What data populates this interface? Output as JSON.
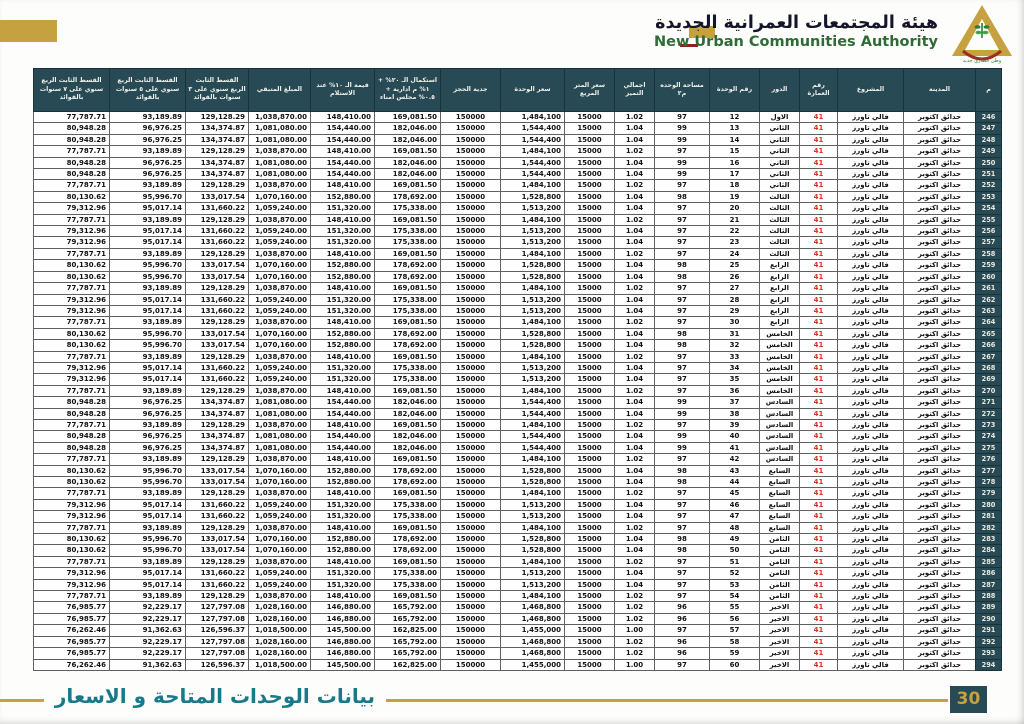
{
  "header": {
    "org_ar": "هيئة المجتمعات العمرانية الجديدة",
    "org_en": "New Urban Communities Authority",
    "logo_tagline": "وطن حضاري جديد"
  },
  "footer": {
    "title": "بيانات الوحدات المتاحة و الاسعار",
    "page_number": "30"
  },
  "colors": {
    "accent_gold": "#C5A13F",
    "table_header_bg": "#274A54",
    "building_number_red": "#D93025",
    "footer_teal": "#17798A",
    "org_en_green": "#2E6B35",
    "org_ar_navy": "#14142B"
  },
  "table": {
    "columns": [
      "م",
      "المدينة",
      "المشروع",
      "رقم العمارة",
      "الدور",
      "رقم الوحدة",
      "مساحة الوحده م٢",
      "اجمالي التميز",
      "سعر المتر المربع",
      "سعر الوحدة",
      "جدية الحجز",
      "استكمال الـ ٢٠% + ١% م ادارية + ٠.٥% مجلس امناء",
      "قيمة الـ ١٠% عند الاستلام",
      "المبلغ المتبقي",
      "القسط الثابت الربع سنوي على ٣ سنوات بالقوائد",
      "القسط الثابت الربع سنوي على ٥ سنوات بالقوائد",
      "القسط الثابت الربع سنوي على ٧ سنوات بالقوائد"
    ],
    "rows": [
      [
        "246",
        "حدائق اكتوبر",
        "فالي تاورز",
        "41",
        "الاول",
        "12",
        "97",
        "1.02",
        "15000",
        "1,484,100",
        "150000",
        "169,081.50",
        "148,410.00",
        "1,038,870.00",
        "129,128.29",
        "93,189.89",
        "77,787.71"
      ],
      [
        "247",
        "حدائق اكتوبر",
        "فالي تاورز",
        "41",
        "الثاني",
        "13",
        "99",
        "1.04",
        "15000",
        "1,544,400",
        "150000",
        "182,046.00",
        "154,440.00",
        "1,081,080.00",
        "134,374.87",
        "96,976.25",
        "80,948.28"
      ],
      [
        "248",
        "حدائق اكتوبر",
        "فالي تاورز",
        "41",
        "الثاني",
        "14",
        "99",
        "1.04",
        "15000",
        "1,544,400",
        "150000",
        "182,046.00",
        "154,440.00",
        "1,081,080.00",
        "134,374.87",
        "96,976.25",
        "80,948.28"
      ],
      [
        "249",
        "حدائق اكتوبر",
        "فالي تاورز",
        "41",
        "الثاني",
        "15",
        "97",
        "1.02",
        "15000",
        "1,484,100",
        "150000",
        "169,081.50",
        "148,410.00",
        "1,038,870.00",
        "129,128.29",
        "93,189.89",
        "77,787.71"
      ],
      [
        "250",
        "حدائق اكتوبر",
        "فالي تاورز",
        "41",
        "الثاني",
        "16",
        "99",
        "1.04",
        "15000",
        "1,544,400",
        "150000",
        "182,046.00",
        "154,440.00",
        "1,081,080.00",
        "134,374.87",
        "96,976.25",
        "80,948.28"
      ],
      [
        "251",
        "حدائق اكتوبر",
        "فالي تاورز",
        "41",
        "الثاني",
        "17",
        "99",
        "1.04",
        "15000",
        "1,544,400",
        "150000",
        "182,046.00",
        "154,440.00",
        "1,081,080.00",
        "134,374.87",
        "96,976.25",
        "80,948.28"
      ],
      [
        "252",
        "حدائق اكتوبر",
        "فالي تاورز",
        "41",
        "الثاني",
        "18",
        "97",
        "1.02",
        "15000",
        "1,484,100",
        "150000",
        "169,081.50",
        "148,410.00",
        "1,038,870.00",
        "129,128.29",
        "93,189.89",
        "77,787.71"
      ],
      [
        "253",
        "حدائق اكتوبر",
        "فالي تاورز",
        "41",
        "الثالث",
        "19",
        "98",
        "1.04",
        "15000",
        "1,528,800",
        "150000",
        "178,692.00",
        "152,880.00",
        "1,070,160.00",
        "133,017.54",
        "95,996.70",
        "80,130.62"
      ],
      [
        "254",
        "حدائق اكتوبر",
        "فالي تاورز",
        "41",
        "الثالث",
        "20",
        "97",
        "1.04",
        "15000",
        "1,513,200",
        "150000",
        "175,338.00",
        "151,320.00",
        "1,059,240.00",
        "131,660.22",
        "95,017.14",
        "79,312.96"
      ],
      [
        "255",
        "حدائق اكتوبر",
        "فالي تاورز",
        "41",
        "الثالث",
        "21",
        "97",
        "1.02",
        "15000",
        "1,484,100",
        "150000",
        "169,081.50",
        "148,410.00",
        "1,038,870.00",
        "129,128.29",
        "93,189.89",
        "77,787.71"
      ],
      [
        "256",
        "حدائق اكتوبر",
        "فالي تاورز",
        "41",
        "الثالث",
        "22",
        "97",
        "1.04",
        "15000",
        "1,513,200",
        "150000",
        "175,338.00",
        "151,320.00",
        "1,059,240.00",
        "131,660.22",
        "95,017.14",
        "79,312.96"
      ],
      [
        "257",
        "حدائق اكتوبر",
        "فالي تاورز",
        "41",
        "الثالث",
        "23",
        "97",
        "1.04",
        "15000",
        "1,513,200",
        "150000",
        "175,338.00",
        "151,320.00",
        "1,059,240.00",
        "131,660.22",
        "95,017.14",
        "79,312.96"
      ],
      [
        "258",
        "حدائق اكتوبر",
        "فالي تاورز",
        "41",
        "الثالث",
        "24",
        "97",
        "1.02",
        "15000",
        "1,484,100",
        "150000",
        "169,081.50",
        "148,410.00",
        "1,038,870.00",
        "129,128.29",
        "93,189.89",
        "77,787.71"
      ],
      [
        "259",
        "حدائق اكتوبر",
        "فالي تاورز",
        "41",
        "الرابع",
        "25",
        "98",
        "1.04",
        "15000",
        "1,528,800",
        "150000",
        "178,692.00",
        "152,880.00",
        "1,070,160.00",
        "133,017.54",
        "95,996.70",
        "80,130.62"
      ],
      [
        "260",
        "حدائق اكتوبر",
        "فالي تاورز",
        "41",
        "الرابع",
        "26",
        "98",
        "1.04",
        "15000",
        "1,528,800",
        "150000",
        "178,692.00",
        "152,880.00",
        "1,070,160.00",
        "133,017.54",
        "95,996.70",
        "80,130.62"
      ],
      [
        "261",
        "حدائق اكتوبر",
        "فالي تاورز",
        "41",
        "الرابع",
        "27",
        "97",
        "1.02",
        "15000",
        "1,484,100",
        "150000",
        "169,081.50",
        "148,410.00",
        "1,038,870.00",
        "129,128.29",
        "93,189.89",
        "77,787.71"
      ],
      [
        "262",
        "حدائق اكتوبر",
        "فالي تاورز",
        "41",
        "الرابع",
        "28",
        "97",
        "1.04",
        "15000",
        "1,513,200",
        "150000",
        "175,338.00",
        "151,320.00",
        "1,059,240.00",
        "131,660.22",
        "95,017.14",
        "79,312.96"
      ],
      [
        "263",
        "حدائق اكتوبر",
        "فالي تاورز",
        "41",
        "الرابع",
        "29",
        "97",
        "1.04",
        "15000",
        "1,513,200",
        "150000",
        "175,338.00",
        "151,320.00",
        "1,059,240.00",
        "131,660.22",
        "95,017.14",
        "79,312.96"
      ],
      [
        "264",
        "حدائق اكتوبر",
        "فالي تاورز",
        "41",
        "الرابع",
        "30",
        "97",
        "1.02",
        "15000",
        "1,484,100",
        "150000",
        "169,081.50",
        "148,410.00",
        "1,038,870.00",
        "129,128.29",
        "93,189.89",
        "77,787.71"
      ],
      [
        "265",
        "حدائق اكتوبر",
        "فالي تاورز",
        "41",
        "الخامس",
        "31",
        "98",
        "1.04",
        "15000",
        "1,528,800",
        "150000",
        "178,692.00",
        "152,880.00",
        "1,070,160.00",
        "133,017.54",
        "95,996.70",
        "80,130.62"
      ],
      [
        "266",
        "حدائق اكتوبر",
        "فالي تاورز",
        "41",
        "الخامس",
        "32",
        "98",
        "1.04",
        "15000",
        "1,528,800",
        "150000",
        "178,692.00",
        "152,880.00",
        "1,070,160.00",
        "133,017.54",
        "95,996.70",
        "80,130.62"
      ],
      [
        "267",
        "حدائق اكتوبر",
        "فالي تاورز",
        "41",
        "الخامس",
        "33",
        "97",
        "1.02",
        "15000",
        "1,484,100",
        "150000",
        "169,081.50",
        "148,410.00",
        "1,038,870.00",
        "129,128.29",
        "93,189.89",
        "77,787.71"
      ],
      [
        "268",
        "حدائق اكتوبر",
        "فالي تاورز",
        "41",
        "الخامس",
        "34",
        "97",
        "1.04",
        "15000",
        "1,513,200",
        "150000",
        "175,338.00",
        "151,320.00",
        "1,059,240.00",
        "131,660.22",
        "95,017.14",
        "79,312.96"
      ],
      [
        "269",
        "حدائق اكتوبر",
        "فالي تاورز",
        "41",
        "الخامس",
        "35",
        "97",
        "1.04",
        "15000",
        "1,513,200",
        "150000",
        "175,338.00",
        "151,320.00",
        "1,059,240.00",
        "131,660.22",
        "95,017.14",
        "79,312.96"
      ],
      [
        "270",
        "حدائق اكتوبر",
        "فالي تاورز",
        "41",
        "الخامس",
        "36",
        "97",
        "1.02",
        "15000",
        "1,484,100",
        "150000",
        "169,081.50",
        "148,410.00",
        "1,038,870.00",
        "129,128.29",
        "93,189.89",
        "77,787.71"
      ],
      [
        "271",
        "حدائق اكتوبر",
        "فالي تاورز",
        "41",
        "السادس",
        "37",
        "99",
        "1.04",
        "15000",
        "1,544,400",
        "150000",
        "182,046.00",
        "154,440.00",
        "1,081,080.00",
        "134,374.87",
        "96,976.25",
        "80,948.28"
      ],
      [
        "272",
        "حدائق اكتوبر",
        "فالي تاورز",
        "41",
        "السادس",
        "38",
        "99",
        "1.04",
        "15000",
        "1,544,400",
        "150000",
        "182,046.00",
        "154,440.00",
        "1,081,080.00",
        "134,374.87",
        "96,976.25",
        "80,948.28"
      ],
      [
        "273",
        "حدائق اكتوبر",
        "فالي تاورز",
        "41",
        "السادس",
        "39",
        "97",
        "1.02",
        "15000",
        "1,484,100",
        "150000",
        "169,081.50",
        "148,410.00",
        "1,038,870.00",
        "129,128.29",
        "93,189.89",
        "77,787.71"
      ],
      [
        "274",
        "حدائق اكتوبر",
        "فالي تاورز",
        "41",
        "السادس",
        "40",
        "99",
        "1.04",
        "15000",
        "1,544,400",
        "150000",
        "182,046.00",
        "154,440.00",
        "1,081,080.00",
        "134,374.87",
        "96,976.25",
        "80,948.28"
      ],
      [
        "275",
        "حدائق اكتوبر",
        "فالي تاورز",
        "41",
        "السادس",
        "41",
        "99",
        "1.04",
        "15000",
        "1,544,400",
        "150000",
        "182,046.00",
        "154,440.00",
        "1,081,080.00",
        "134,374.87",
        "96,976.25",
        "80,948.28"
      ],
      [
        "276",
        "حدائق اكتوبر",
        "فالي تاورز",
        "41",
        "السادس",
        "42",
        "97",
        "1.02",
        "15000",
        "1,484,100",
        "150000",
        "169,081.50",
        "148,410.00",
        "1,038,870.00",
        "129,128.29",
        "93,189.89",
        "77,787.71"
      ],
      [
        "277",
        "حدائق اكتوبر",
        "فالي تاورز",
        "41",
        "السابع",
        "43",
        "98",
        "1.04",
        "15000",
        "1,528,800",
        "150000",
        "178,692.00",
        "152,880.00",
        "1,070,160.00",
        "133,017.54",
        "95,996.70",
        "80,130.62"
      ],
      [
        "278",
        "حدائق اكتوبر",
        "فالي تاورز",
        "41",
        "السابع",
        "44",
        "98",
        "1.04",
        "15000",
        "1,528,800",
        "150000",
        "178,692.00",
        "152,880.00",
        "1,070,160.00",
        "133,017.54",
        "95,996.70",
        "80,130.62"
      ],
      [
        "279",
        "حدائق اكتوبر",
        "فالي تاورز",
        "41",
        "السابع",
        "45",
        "97",
        "1.02",
        "15000",
        "1,484,100",
        "150000",
        "169,081.50",
        "148,410.00",
        "1,038,870.00",
        "129,128.29",
        "93,189.89",
        "77,787.71"
      ],
      [
        "280",
        "حدائق اكتوبر",
        "فالي تاورز",
        "41",
        "السابع",
        "46",
        "97",
        "1.04",
        "15000",
        "1,513,200",
        "150000",
        "175,338.00",
        "151,320.00",
        "1,059,240.00",
        "131,660.22",
        "95,017.14",
        "79,312.96"
      ],
      [
        "281",
        "حدائق اكتوبر",
        "فالي تاورز",
        "41",
        "السابع",
        "47",
        "97",
        "1.04",
        "15000",
        "1,513,200",
        "150000",
        "175,338.00",
        "151,320.00",
        "1,059,240.00",
        "131,660.22",
        "95,017.14",
        "79,312.96"
      ],
      [
        "282",
        "حدائق اكتوبر",
        "فالي تاورز",
        "41",
        "السابع",
        "48",
        "97",
        "1.02",
        "15000",
        "1,484,100",
        "150000",
        "169,081.50",
        "148,410.00",
        "1,038,870.00",
        "129,128.29",
        "93,189.89",
        "77,787.71"
      ],
      [
        "283",
        "حدائق اكتوبر",
        "فالي تاورز",
        "41",
        "الثامن",
        "49",
        "98",
        "1.04",
        "15000",
        "1,528,800",
        "150000",
        "178,692.00",
        "152,880.00",
        "1,070,160.00",
        "133,017.54",
        "95,996.70",
        "80,130.62"
      ],
      [
        "284",
        "حدائق اكتوبر",
        "فالي تاورز",
        "41",
        "الثامن",
        "50",
        "98",
        "1.04",
        "15000",
        "1,528,800",
        "150000",
        "178,692.00",
        "152,880.00",
        "1,070,160.00",
        "133,017.54",
        "95,996.70",
        "80,130.62"
      ],
      [
        "285",
        "حدائق اكتوبر",
        "فالي تاورز",
        "41",
        "الثامن",
        "51",
        "97",
        "1.02",
        "15000",
        "1,484,100",
        "150000",
        "169,081.50",
        "148,410.00",
        "1,038,870.00",
        "129,128.29",
        "93,189.89",
        "77,787.71"
      ],
      [
        "286",
        "حدائق اكتوبر",
        "فالي تاورز",
        "41",
        "الثامن",
        "52",
        "97",
        "1.04",
        "15000",
        "1,513,200",
        "150000",
        "175,338.00",
        "151,320.00",
        "1,059,240.00",
        "131,660.22",
        "95,017.14",
        "79,312.96"
      ],
      [
        "287",
        "حدائق اكتوبر",
        "فالي تاورز",
        "41",
        "الثامن",
        "53",
        "97",
        "1.04",
        "15000",
        "1,513,200",
        "150000",
        "175,338.00",
        "151,320.00",
        "1,059,240.00",
        "131,660.22",
        "95,017.14",
        "79,312.96"
      ],
      [
        "288",
        "حدائق اكتوبر",
        "فالي تاورز",
        "41",
        "الثامن",
        "54",
        "97",
        "1.02",
        "15000",
        "1,484,100",
        "150000",
        "169,081.50",
        "148,410.00",
        "1,038,870.00",
        "129,128.29",
        "93,189.89",
        "77,787.71"
      ],
      [
        "289",
        "حدائق اكتوبر",
        "فالي تاورز",
        "41",
        "الاخير",
        "55",
        "96",
        "1.02",
        "15000",
        "1,468,800",
        "150000",
        "165,792.00",
        "146,880.00",
        "1,028,160.00",
        "127,797.08",
        "92,229.17",
        "76,985.77"
      ],
      [
        "290",
        "حدائق اكتوبر",
        "فالي تاورز",
        "41",
        "الاخير",
        "56",
        "96",
        "1.02",
        "15000",
        "1,468,800",
        "150000",
        "165,792.00",
        "146,880.00",
        "1,028,160.00",
        "127,797.08",
        "92,229.17",
        "76,985.77"
      ],
      [
        "291",
        "حدائق اكتوبر",
        "فالي تاورز",
        "41",
        "الاخير",
        "57",
        "97",
        "1.00",
        "15000",
        "1,455,000",
        "150000",
        "162,825.00",
        "145,500.00",
        "1,018,500.00",
        "126,596.37",
        "91,362.63",
        "76,262.46"
      ],
      [
        "292",
        "حدائق اكتوبر",
        "فالي تاورز",
        "41",
        "الاخير",
        "58",
        "96",
        "1.02",
        "15000",
        "1,468,800",
        "150000",
        "165,792.00",
        "146,880.00",
        "1,028,160.00",
        "127,797.08",
        "92,229.17",
        "76,985.77"
      ],
      [
        "293",
        "حدائق اكتوبر",
        "فالي تاورز",
        "41",
        "الاخير",
        "59",
        "96",
        "1.02",
        "15000",
        "1,468,800",
        "150000",
        "165,792.00",
        "146,880.00",
        "1,028,160.00",
        "127,797.08",
        "92,229.17",
        "76,985.77"
      ],
      [
        "294",
        "حدائق اكتوبر",
        "فالي تاورز",
        "41",
        "الاخير",
        "60",
        "97",
        "1.00",
        "15000",
        "1,455,000",
        "150000",
        "162,825.00",
        "145,500.00",
        "1,018,500.00",
        "126,596.37",
        "91,362.63",
        "76,262.46"
      ]
    ]
  }
}
